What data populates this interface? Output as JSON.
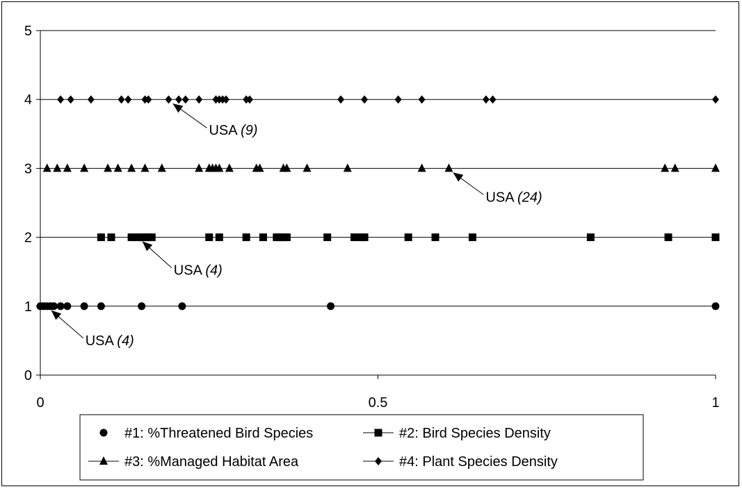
{
  "chart_data": {
    "type": "scatter",
    "xlim": [
      0,
      1
    ],
    "ylim": [
      0,
      5
    ],
    "x_ticks": [
      "0",
      "0.5",
      "1"
    ],
    "y_ticks": [
      "0",
      "1",
      "2",
      "3",
      "4",
      "5"
    ],
    "grid": "horizontal",
    "legend_position": "bottom",
    "series": [
      {
        "name": "#1: %Threatened Bird Species",
        "marker": "circle",
        "line": false,
        "y": 1,
        "x": [
          0.0,
          0.005,
          0.01,
          0.015,
          0.02,
          0.03,
          0.04,
          0.065,
          0.09,
          0.15,
          0.21,
          0.43,
          1.0
        ]
      },
      {
        "name": "#2: Bird Species Density",
        "marker": "square",
        "line": true,
        "y": 2,
        "x": [
          0.09,
          0.105,
          0.135,
          0.145,
          0.15,
          0.155,
          0.16,
          0.165,
          0.25,
          0.265,
          0.305,
          0.33,
          0.35,
          0.355,
          0.36,
          0.365,
          0.425,
          0.465,
          0.475,
          0.48,
          0.545,
          0.585,
          0.64,
          0.815,
          0.93,
          1.0
        ]
      },
      {
        "name": "#3: %Managed Habitat Area",
        "marker": "triangle",
        "line": true,
        "y": 3,
        "x": [
          0.01,
          0.025,
          0.04,
          0.065,
          0.1,
          0.115,
          0.135,
          0.155,
          0.18,
          0.235,
          0.25,
          0.255,
          0.26,
          0.265,
          0.28,
          0.32,
          0.325,
          0.36,
          0.365,
          0.395,
          0.455,
          0.565,
          0.605,
          0.925,
          0.94,
          1.0
        ]
      },
      {
        "name": "#4: Plant Species Density",
        "marker": "diamond",
        "line": true,
        "y": 4,
        "x": [
          0.03,
          0.045,
          0.075,
          0.12,
          0.13,
          0.155,
          0.16,
          0.19,
          0.205,
          0.215,
          0.235,
          0.26,
          0.265,
          0.27,
          0.275,
          0.305,
          0.31,
          0.445,
          0.48,
          0.53,
          0.565,
          0.66,
          0.67,
          1.0
        ]
      }
    ],
    "annotations": [
      {
        "label": "USA",
        "value": "(9)",
        "series": "#4: Plant Species Density",
        "x": 0.19,
        "y": 4
      },
      {
        "label": "USA",
        "value": "(24)",
        "series": "#3: %Managed Habitat Area",
        "x": 0.605,
        "y": 3
      },
      {
        "label": "USA",
        "value": "(4)",
        "series": "#2: Bird Species Density",
        "x": 0.145,
        "y": 2
      },
      {
        "label": "USA",
        "value": "(4)",
        "series": "#1: %Threatened Bird Species",
        "x": 0.01,
        "y": 1
      }
    ]
  }
}
